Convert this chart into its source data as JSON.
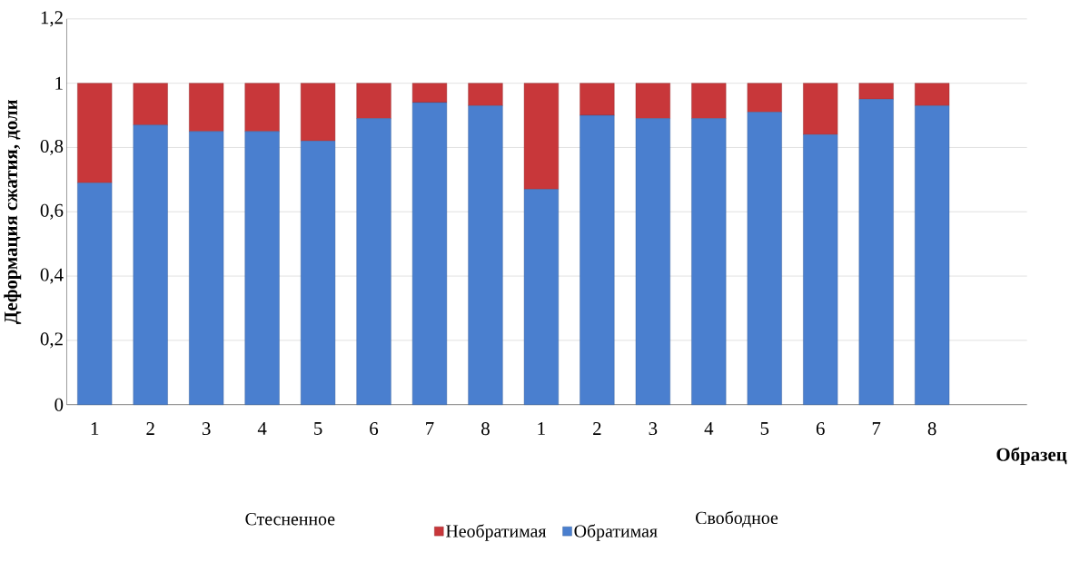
{
  "chart_data": {
    "type": "bar",
    "stacked": true,
    "xlabel": "Образец",
    "ylabel": "Деформация сжатия, доли",
    "categories": [
      "1",
      "2",
      "3",
      "4",
      "5",
      "6",
      "7",
      "8",
      "1",
      "2",
      "3",
      "4",
      "5",
      "6",
      "7",
      "8"
    ],
    "series": [
      {
        "name": "Обратимая",
        "color": "#4a7fcf",
        "values": [
          0.69,
          0.87,
          0.85,
          0.85,
          0.82,
          0.89,
          0.94,
          0.93,
          0.67,
          0.9,
          0.89,
          0.89,
          0.91,
          0.84,
          0.95,
          0.93
        ]
      },
      {
        "name": "Необратимая",
        "color": "#c8373a",
        "values": [
          0.31,
          0.13,
          0.15,
          0.15,
          0.18,
          0.11,
          0.06,
          0.07,
          0.33,
          0.1,
          0.11,
          0.11,
          0.09,
          0.16,
          0.05,
          0.07
        ]
      }
    ],
    "ylim": [
      0,
      1.2
    ],
    "yticks": [
      0,
      {
        "value": 0.2,
        "label": "0,2"
      },
      {
        "value": 0.4,
        "label": "0,4"
      },
      {
        "value": 0.6,
        "label": "0,6"
      },
      {
        "value": 0.8,
        "label": "0,8"
      },
      1,
      {
        "value": 1.2,
        "label": "1,2"
      }
    ],
    "grid": "y",
    "legend": "bottom",
    "annotations": [
      "Стесненное",
      "Свободное"
    ]
  }
}
